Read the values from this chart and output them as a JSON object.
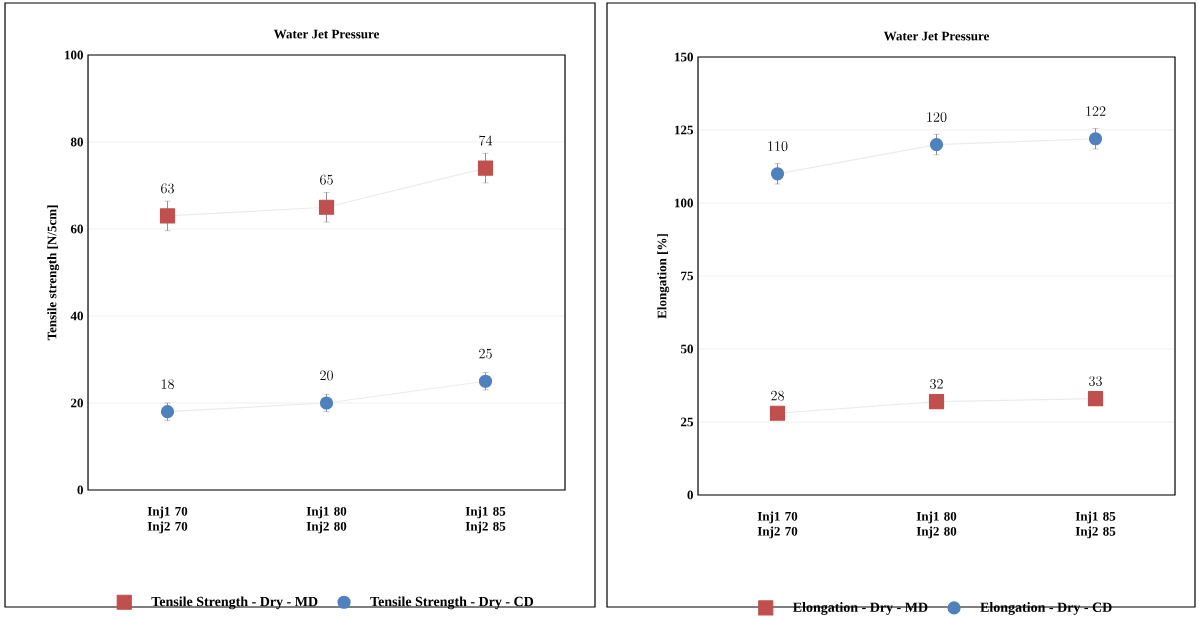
{
  "chart_data": [
    {
      "type": "line",
      "title": "Water Jet Pressure",
      "ylabel": "Tensile strength  [N/5cm]",
      "categories": [
        "Inj1 70 Inj2 70",
        "Inj1 80 Inj2 80",
        "Inj1 85 Inj2 85"
      ],
      "ylim": [
        0,
        100
      ],
      "yticks": [
        0,
        20,
        40,
        60,
        80,
        100
      ],
      "grid": "y",
      "legend": "bottom",
      "data_labels": true,
      "series": [
        {
          "name": "Tensile Strength - Dry - MD",
          "color": "#c0504d",
          "marker": "square",
          "values": [
            63,
            65,
            74
          ],
          "errors": [
            3.4,
            3.4,
            3.4
          ]
        },
        {
          "name": "Tensile Strength - Dry - CD",
          "color": "#4f81bd",
          "marker": "circle",
          "values": [
            18,
            20,
            25
          ],
          "errors": [
            2,
            2,
            2
          ]
        }
      ]
    },
    {
      "type": "line",
      "title": "Water Jet Pressure",
      "ylabel": "Elongation    [%]",
      "categories": [
        "Inj1 70 Inj2 70",
        "Inj1 80 Inj2 80",
        "Inj1 85 Inj2 85"
      ],
      "ylim": [
        0,
        150
      ],
      "yticks": [
        0,
        25,
        50,
        75,
        100,
        125,
        150
      ],
      "grid": "y",
      "legend": "bottom",
      "data_labels": true,
      "series": [
        {
          "name": "Elongation - Dry - MD",
          "color": "#c0504d",
          "marker": "square",
          "values": [
            28,
            32,
            33
          ]
        },
        {
          "name": "Elongation - Dry - CD",
          "color": "#4f81bd",
          "marker": "circle",
          "values": [
            110,
            120,
            122
          ],
          "errors": [
            3.5,
            3.5,
            3.5
          ]
        }
      ]
    }
  ]
}
